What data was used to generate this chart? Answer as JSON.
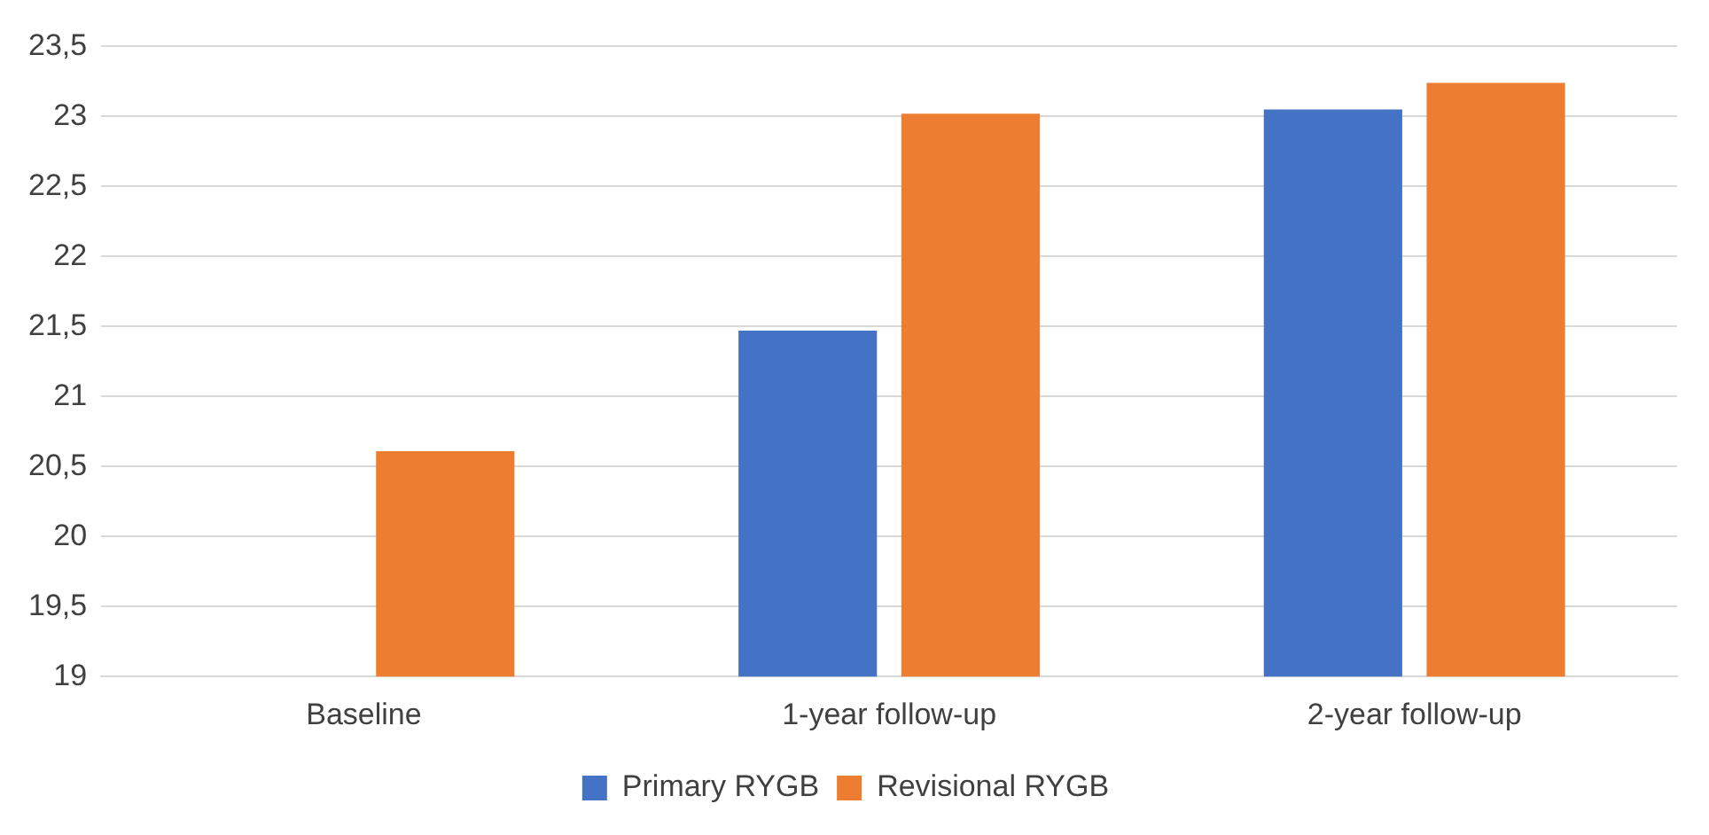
{
  "chart_data": {
    "type": "bar",
    "categories": [
      "Baseline",
      "1-year follow-up",
      "2-year follow-up"
    ],
    "series": [
      {
        "name": "Primary RYGB",
        "color": "#4472c4",
        "values": [
          null,
          21.47,
          23.05
        ]
      },
      {
        "name": "Revisional RYGB",
        "color": "#ed7d31",
        "values": [
          20.61,
          23.02,
          23.24
        ]
      }
    ],
    "ylim": [
      19,
      23.5
    ],
    "yticks": [
      19,
      {
        "value": 19.5,
        "label": "19,5"
      },
      20,
      {
        "value": 20.5,
        "label": "20,5"
      },
      21,
      {
        "value": 21.5,
        "label": "21,5"
      },
      22,
      {
        "value": 22.5,
        "label": "22,5"
      },
      23,
      {
        "value": 23.5,
        "label": "23,5"
      }
    ],
    "grid": "y",
    "legend": "bottom"
  }
}
